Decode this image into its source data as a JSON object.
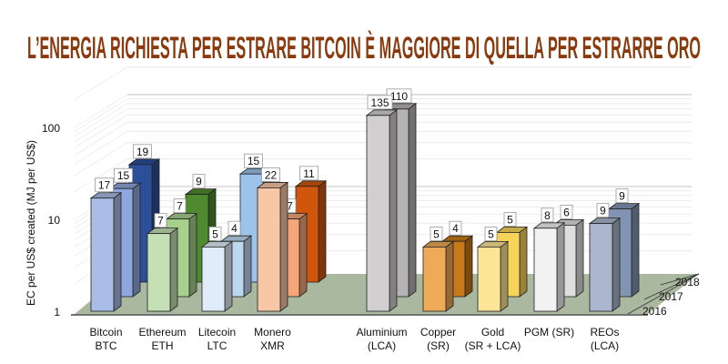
{
  "title": "L’ENERGIA RICHIESTA PER ESTRARE BITCOIN  È MAGGIORE DI QUELLA PER ESTRARRE ORO",
  "title_color": "#8a3a0c",
  "chart_data": {
    "type": "bar",
    "subtype": "3d-grouped",
    "title": "L’ENERGIA RICHIESTA PER ESTRARE BITCOIN  È MAGGIORE DI QUELLA PER ESTRARRE ORO",
    "ylabel": "EC per US$ created (MJ per US$)",
    "yscale": "log",
    "ylim": [
      1,
      200
    ],
    "yticks": [
      "1",
      "10",
      "100"
    ],
    "years": [
      "2016",
      "2017",
      "2018"
    ],
    "categories": [
      {
        "line1": "Bitcoin",
        "line2": "BTC",
        "values": [
          17,
          15,
          19
        ],
        "colors": [
          "#a9bde6",
          "#8ea7de",
          "#2c4f9a"
        ]
      },
      {
        "line1": "Ethereum",
        "line2": "ETH",
        "values": [
          7,
          7,
          9
        ],
        "colors": [
          "#c4e0b4",
          "#a6d08c",
          "#4f8a2e"
        ]
      },
      {
        "line1": "Litecoin",
        "line2": "LTC",
        "values": [
          5,
          4,
          15
        ],
        "colors": [
          "#e0ecf9",
          "#bdd7f0",
          "#9cc3ea"
        ]
      },
      {
        "line1": "Monero",
        "line2": "XMR",
        "values": [
          22,
          7,
          11
        ],
        "colors": [
          "#f7c7a6",
          "#f6a77a",
          "#d0560e"
        ]
      },
      {
        "line1": "Aluminium",
        "line2": "(LCA)",
        "values": [
          135,
          110,
          null
        ],
        "colors": [
          "#d2cfd0",
          "#b6b3b4",
          "#999"
        ]
      },
      {
        "line1": "Copper",
        "line2": "(SR)",
        "values": [
          5,
          4,
          null
        ],
        "colors": [
          "#eeaa56",
          "#c87a18",
          "#999"
        ]
      },
      {
        "line1": "Gold",
        "line2": "(SR + LCA)",
        "values": [
          5,
          5,
          null
        ],
        "colors": [
          "#fde597",
          "#f8d35a",
          "#999"
        ]
      },
      {
        "line1": "PGM (SR)",
        "line2": "",
        "values": [
          8,
          6,
          null
        ],
        "colors": [
          "#f2f2f2",
          "#dedede",
          "#999"
        ]
      },
      {
        "line1": "REOs",
        "line2": "(LCA)",
        "values": [
          9,
          9,
          null
        ],
        "colors": [
          "#aab6cd",
          "#8294b4",
          "#999"
        ]
      }
    ],
    "floor_color": "#a9b89e",
    "grid": true
  }
}
